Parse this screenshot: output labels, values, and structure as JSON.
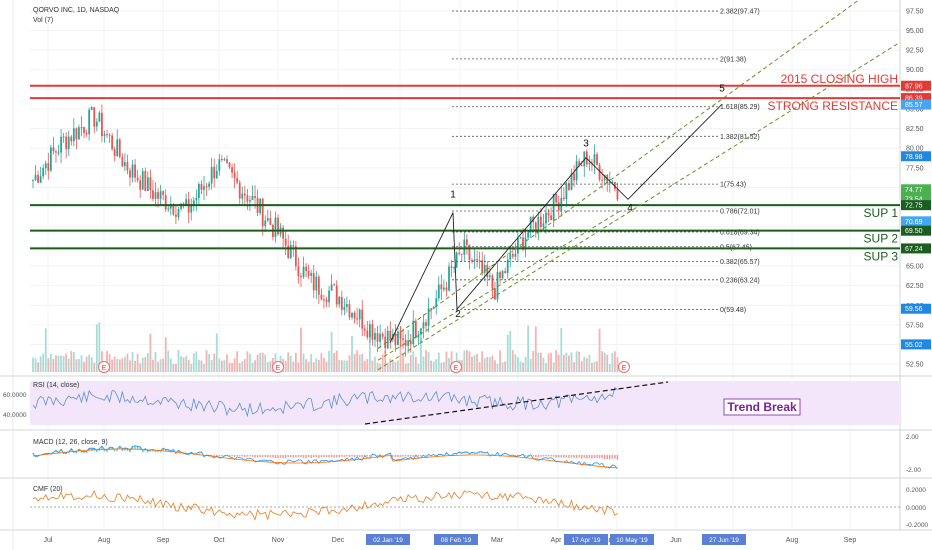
{
  "header": {
    "symbol_line": "QORVO INC, 1D, NASDAQ",
    "volume_label": "Vol (7)"
  },
  "price_axis": {
    "ticks": [
      "97.50",
      "95.00",
      "92.50",
      "90.00",
      "87.50",
      "85.00",
      "82.50",
      "80.00",
      "77.50",
      "75.00",
      "72.50",
      "70.00",
      "67.50",
      "65.00",
      "62.50",
      "60.00",
      "57.50",
      "55.00",
      "52.50"
    ],
    "badges": [
      {
        "label": "87.96",
        "color": "#e53935"
      },
      {
        "label": "86.39",
        "color": "#e53935"
      },
      {
        "label": "85.57",
        "color": "#42a5f5"
      },
      {
        "label": "78.98",
        "color": "#1e88e5"
      },
      {
        "label": "74.77",
        "color": "#4caf50"
      },
      {
        "label": "73.54",
        "color": "#4caf50"
      },
      {
        "label": "72.75",
        "color": "#1b5e20"
      },
      {
        "label": "70.69",
        "color": "#42a5f5"
      },
      {
        "label": "69.50",
        "color": "#1b5e20"
      },
      {
        "label": "67.24",
        "color": "#1b5e20"
      },
      {
        "label": "59.56",
        "color": "#1e88e5"
      },
      {
        "label": "55.02",
        "color": "#1e88e5"
      }
    ]
  },
  "time_axis": {
    "labels": [
      "Jul",
      "Aug",
      "Sep",
      "Oct",
      "Nov",
      "Dec",
      "Apr",
      "Jun",
      "Aug",
      "Sep"
    ],
    "highlighted": [
      "02 Jan '19",
      "08 Feb '19",
      "17 Apr '19",
      "10 May '19",
      "27 Jun '19"
    ],
    "extra": [
      "Mar",
      "Mar"
    ]
  },
  "fib_levels": [
    "2.382(97.47)",
    "2(91.38)",
    "1.618(85.29)",
    "1.382(81.52)",
    "1(75.43)",
    "0.786(72.01)",
    "0.618(69.34)",
    "0.5(67.45)",
    "0.382(65.57)",
    "0.236(63.24)",
    "0(59.48)"
  ],
  "annotations": {
    "closing_high": "2015 CLOSING HIGH",
    "resistance": "STRONG RESISTANCE",
    "sup1": "SUP 1",
    "sup2": "SUP 2",
    "sup3": "SUP 3",
    "trend_break": "Trend Break",
    "wave_labels": [
      "1",
      "2",
      "3",
      "4",
      "5"
    ],
    "earnings_marker": "E"
  },
  "indicators": {
    "rsi": {
      "label": "RSI (14, close)",
      "ticks": [
        "60.0000",
        "40.0000"
      ]
    },
    "macd": {
      "label": "MACD (12, 26, close, 9)",
      "ticks": [
        "2.00",
        "-2.00"
      ]
    },
    "cmf": {
      "label": "CMF (20)",
      "ticks": [
        "0.2000",
        "0.0000",
        "-0.2000"
      ]
    }
  },
  "colors": {
    "up": "#26a69a",
    "down": "#ef5350",
    "resistance": "#e53935",
    "support": "#1b5e20",
    "fib": "#555555",
    "channel": "#6b8e23",
    "rsi_line": "#5b8fd4",
    "macd_line": "#2196f3",
    "signal_line": "#ff6d00",
    "cmf_line": "#e67e22"
  },
  "chart_data": {
    "type": "candlestick",
    "ylim": [
      51.5,
      98.5
    ],
    "x": [
      "Jul",
      "Aug",
      "Sep",
      "Oct",
      "Nov",
      "Dec",
      "Jan",
      "Feb",
      "Mar",
      "Apr",
      "May",
      "Jun",
      "Jul",
      "Aug",
      "Sep"
    ],
    "price_path": [
      76,
      81,
      84,
      78,
      74,
      72,
      78,
      74,
      69,
      63,
      61,
      57,
      55,
      60,
      67,
      62,
      69,
      73,
      79,
      75
    ],
    "horizontal_levels": [
      {
        "value": 87.96,
        "label": "2015 CLOSING HIGH"
      },
      {
        "value": 86.39,
        "label": "STRONG RESISTANCE"
      },
      {
        "value": 72.75,
        "label": "SUP 1"
      },
      {
        "value": 69.5,
        "label": "SUP 2"
      },
      {
        "value": 67.24,
        "label": "SUP 3"
      }
    ],
    "fibonacci": [
      {
        "ratio": "2.382",
        "value": 97.47
      },
      {
        "ratio": "2",
        "value": 91.38
      },
      {
        "ratio": "1.618",
        "value": 85.29
      },
      {
        "ratio": "1.382",
        "value": 81.52
      },
      {
        "ratio": "1",
        "value": 75.43
      },
      {
        "ratio": "0.786",
        "value": 72.01
      },
      {
        "ratio": "0.618",
        "value": 69.34
      },
      {
        "ratio": "0.5",
        "value": 67.45
      },
      {
        "ratio": "0.382",
        "value": 65.57
      },
      {
        "ratio": "0.236",
        "value": 63.24
      },
      {
        "ratio": "0",
        "value": 59.48
      }
    ]
  }
}
